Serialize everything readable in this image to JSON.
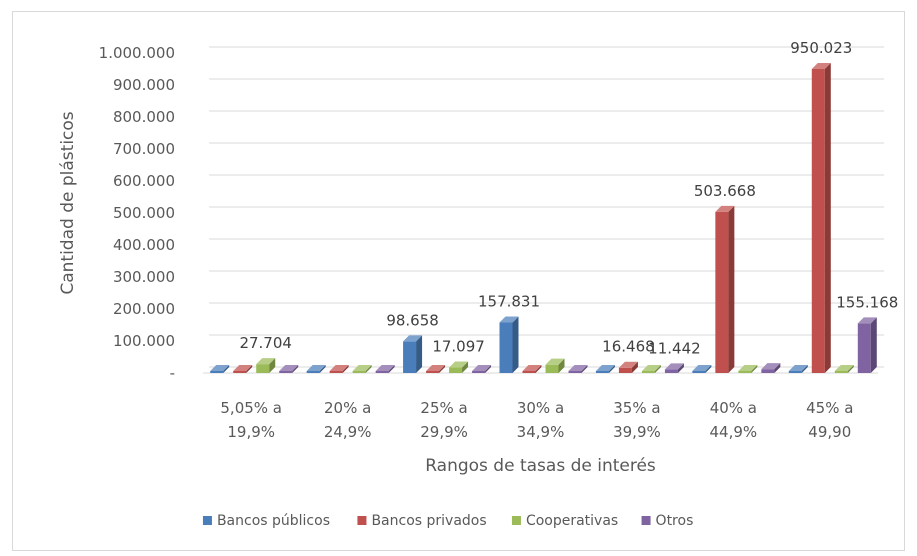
{
  "chart_data": {
    "type": "bar",
    "title": "",
    "xlabel": "Rangos de tasas de interés",
    "ylabel": "Cantidad de plásticos",
    "ylim": [
      0,
      1000000
    ],
    "yticks": [
      "-",
      "100.000",
      "200.000",
      "300.000",
      "400.000",
      "500.000",
      "600.000",
      "700.000",
      "800.000",
      "900.000",
      "1.000.000"
    ],
    "grid": true,
    "legend_position": "bottom",
    "categories": [
      [
        "5,05% a",
        "19,9%"
      ],
      [
        "20% a",
        "24,9%"
      ],
      [
        "25% a",
        "29,9%"
      ],
      [
        "30% a",
        "34,9%"
      ],
      [
        "35% a",
        "39,9%"
      ],
      [
        "40% a",
        "44,9%"
      ],
      [
        "45% a",
        "49,90"
      ]
    ],
    "series": [
      {
        "name": "Bancos públicos",
        "color": "#4a7ebb",
        "values": [
          0,
          0,
          98658,
          157831,
          0,
          0,
          0
        ],
        "labels": [
          "",
          "",
          "98.658",
          "157.831",
          "",
          "",
          ""
        ]
      },
      {
        "name": "Bancos privados",
        "color": "#c0504d",
        "values": [
          0,
          0,
          0,
          0,
          16468,
          503668,
          950023
        ],
        "labels": [
          "",
          "",
          "",
          "",
          "16.468",
          "503.668",
          "950.023"
        ]
      },
      {
        "name": "Cooperativas",
        "color": "#9bbb59",
        "values": [
          27704,
          0,
          17097,
          26000,
          0,
          0,
          0
        ],
        "labels": [
          "27.704",
          "",
          "17.097",
          "",
          "",
          "",
          ""
        ]
      },
      {
        "name": "Otros",
        "color": "#8064a2",
        "values": [
          0,
          0,
          0,
          0,
          11442,
          12000,
          155168
        ],
        "labels": [
          "",
          "",
          "",
          "",
          "11.442",
          "",
          "155.168"
        ]
      }
    ]
  }
}
